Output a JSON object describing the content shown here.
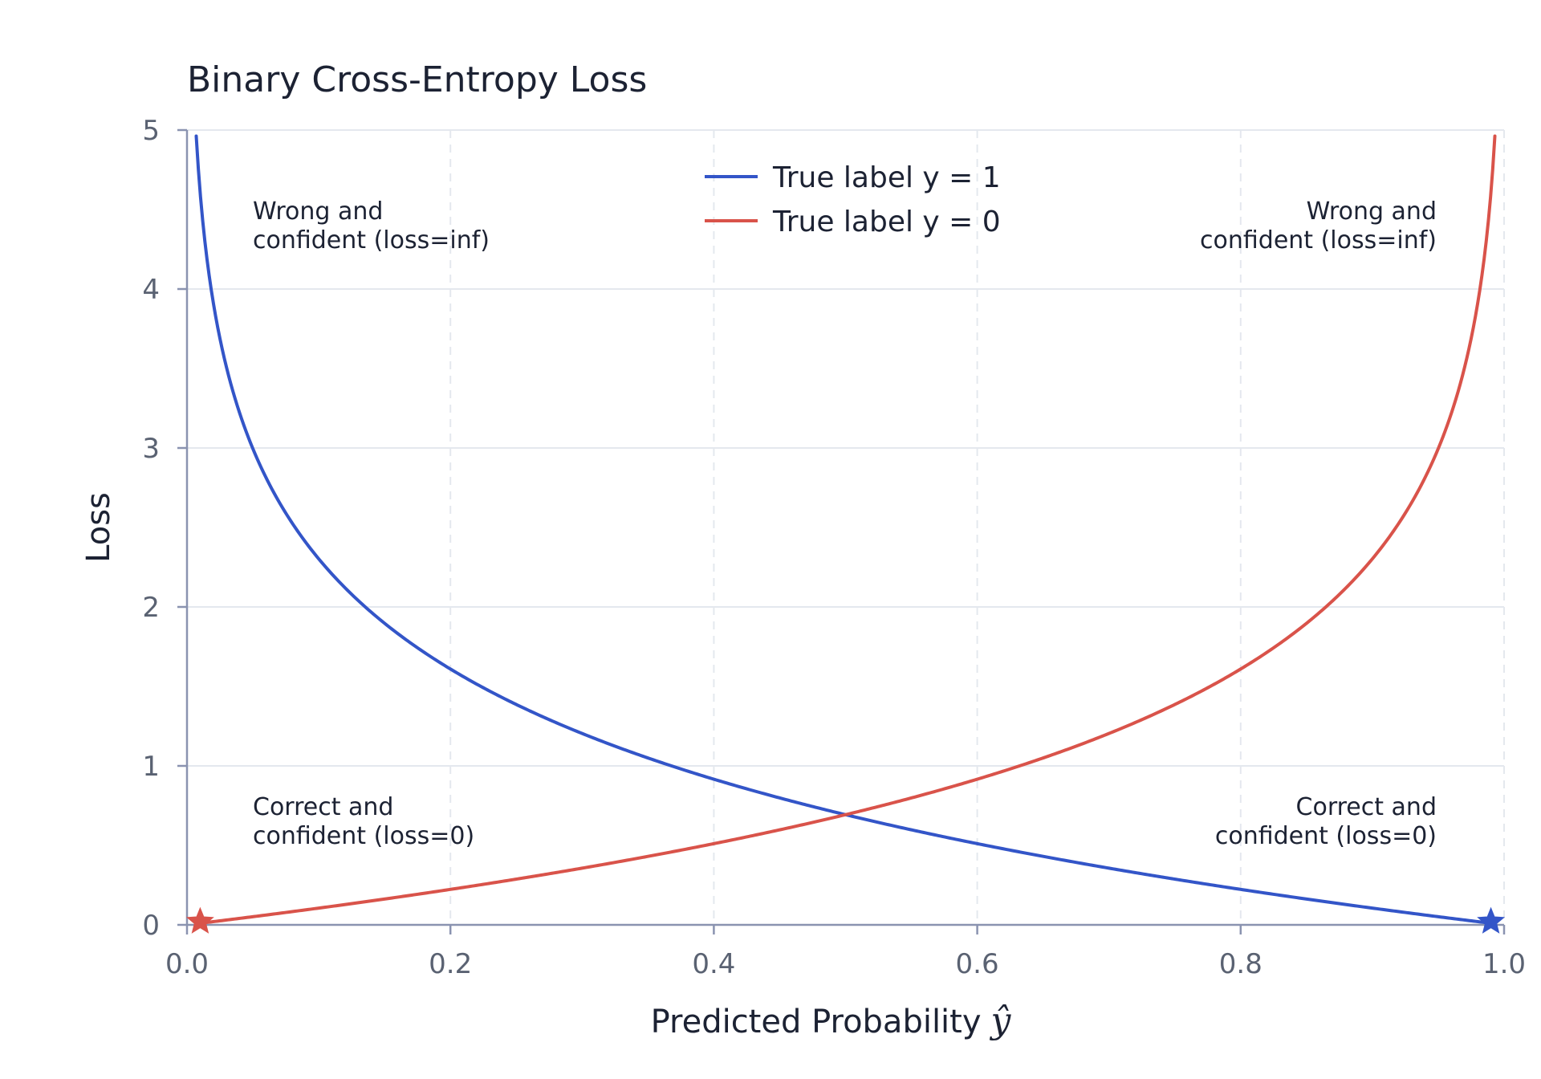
{
  "chart_data": {
    "type": "line",
    "title": "Binary Cross-Entropy Loss",
    "xlabel": "Predicted Probability",
    "xlabel_symbol": "ŷ",
    "ylabel": "Loss",
    "xlim": [
      0.0,
      1.0
    ],
    "ylim": [
      0,
      5
    ],
    "x_ticks": [
      "0.0",
      "0.2",
      "0.4",
      "0.6",
      "0.8",
      "1.0"
    ],
    "y_ticks": [
      "0",
      "1",
      "2",
      "3",
      "4",
      "5"
    ],
    "grid": true,
    "legend_position": "top-center",
    "series": [
      {
        "name": "True label y = 1",
        "formula": "-log(p)",
        "color": "#3355c8",
        "x": [
          0.007,
          0.01,
          0.02,
          0.03,
          0.05,
          0.1,
          0.15,
          0.2,
          0.3,
          0.4,
          0.5,
          0.6,
          0.7,
          0.8,
          0.9,
          0.99
        ],
        "values": [
          4.96,
          4.61,
          3.91,
          3.51,
          3.0,
          2.3,
          1.9,
          1.61,
          1.2,
          0.92,
          0.69,
          0.51,
          0.36,
          0.22,
          0.11,
          0.01
        ]
      },
      {
        "name": "True label y = 0",
        "formula": "-log(1-p)",
        "color": "#d9534a",
        "x": [
          0.01,
          0.1,
          0.2,
          0.3,
          0.4,
          0.5,
          0.6,
          0.7,
          0.8,
          0.85,
          0.9,
          0.95,
          0.97,
          0.98,
          0.99,
          0.993
        ],
        "values": [
          0.01,
          0.11,
          0.22,
          0.36,
          0.51,
          0.69,
          0.92,
          1.2,
          1.61,
          1.9,
          2.3,
          3.0,
          3.51,
          3.91,
          4.61,
          4.96
        ]
      }
    ],
    "markers": [
      {
        "series": "True label y = 0",
        "x": 0.01,
        "y": 0.01,
        "shape": "star",
        "color": "#d9534a"
      },
      {
        "series": "True label y = 1",
        "x": 0.99,
        "y": 0.01,
        "shape": "star",
        "color": "#3355c8"
      }
    ],
    "annotations": [
      {
        "lines": [
          "Wrong and",
          "confident (loss=inf)"
        ],
        "x": 0.05,
        "y": 4.5,
        "align": "left"
      },
      {
        "lines": [
          "Wrong and",
          "confident (loss=inf)"
        ],
        "x": 0.95,
        "y": 4.5,
        "align": "right"
      },
      {
        "lines": [
          "Correct and",
          "confident (loss=0)"
        ],
        "x": 0.05,
        "y": 0.75,
        "align": "left"
      },
      {
        "lines": [
          "Correct and",
          "confident (loss=0)"
        ],
        "x": 0.95,
        "y": 0.75,
        "align": "right"
      }
    ]
  }
}
